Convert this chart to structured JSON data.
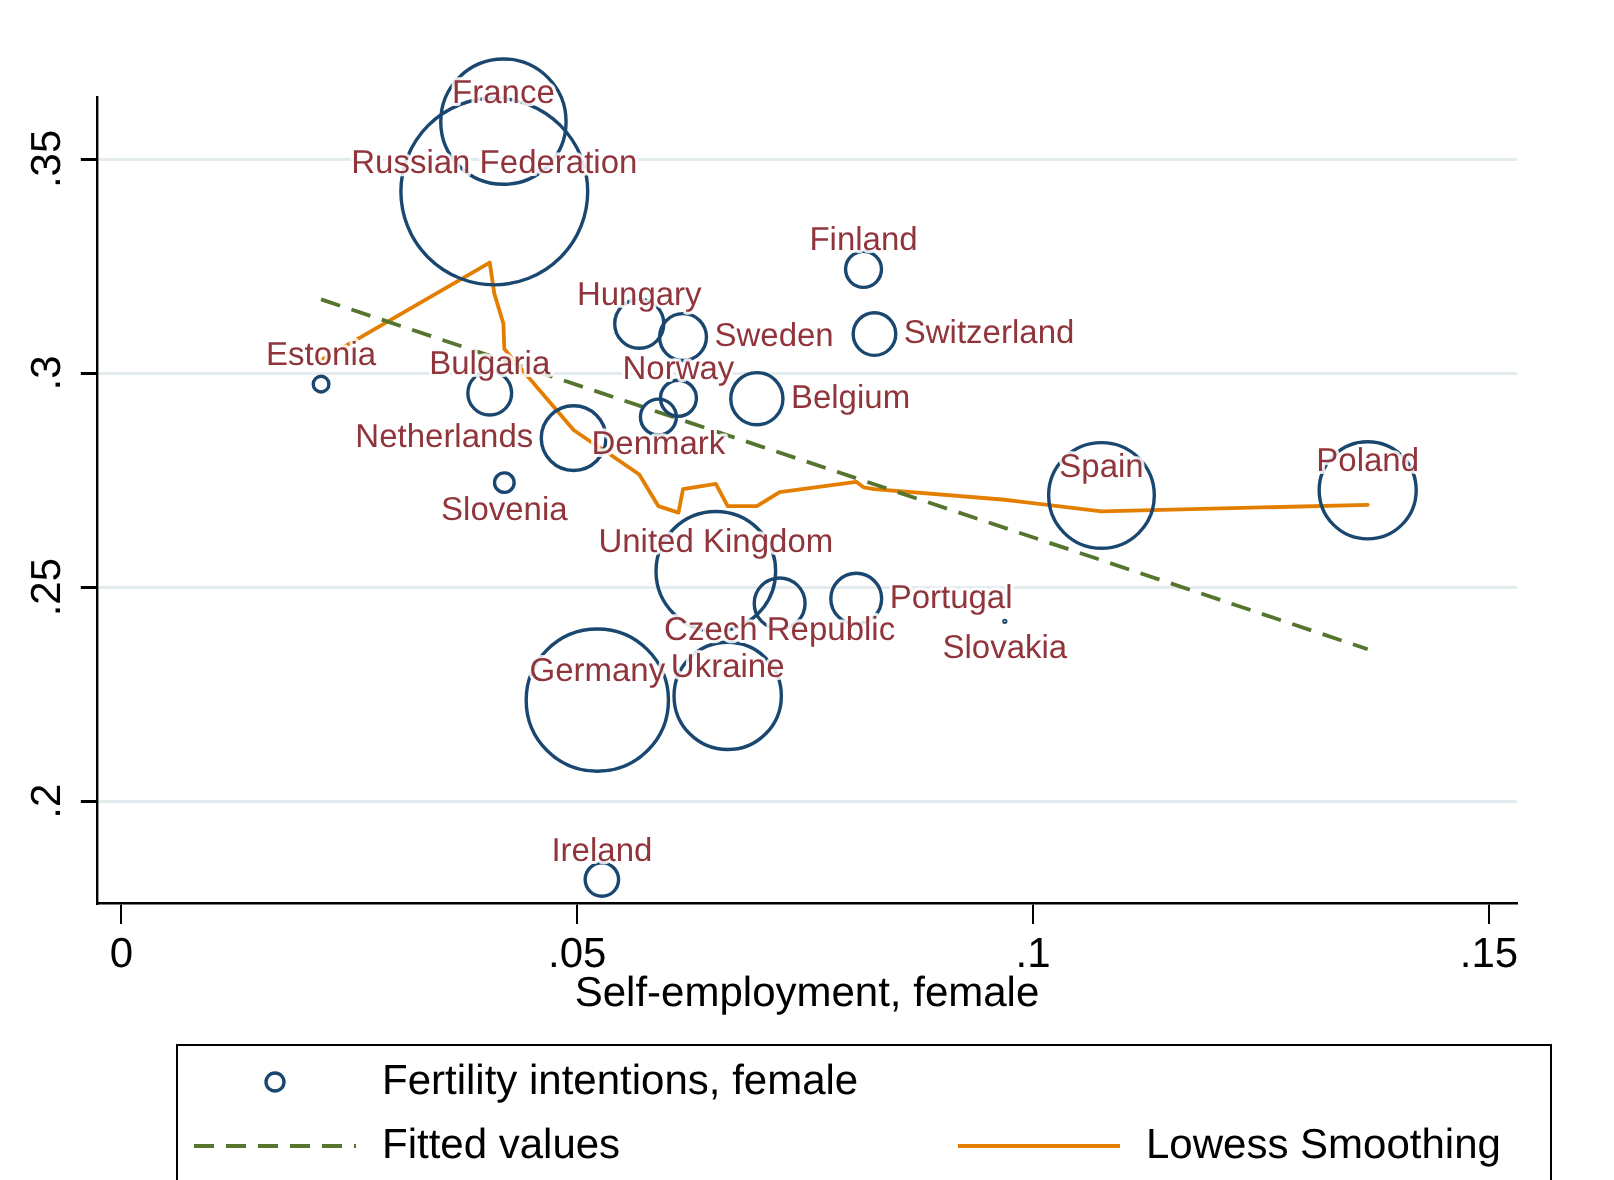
{
  "chart_data": {
    "type": "bubble",
    "xlabel": "Self-employment, female",
    "x": [
      0.0219,
      0.0404,
      0.0409,
      0.0419,
      0.042,
      0.0496,
      0.0522,
      0.0527,
      0.0568,
      0.0589,
      0.0611,
      0.0616,
      0.0652,
      0.0665,
      0.0697,
      0.0722,
      0.0806,
      0.0814,
      0.0826,
      0.0969,
      0.1075,
      0.1367
    ],
    "series": [
      {
        "name": "Fertility intentions, female",
        "color": "#1a476f",
        "values": [
          0.2974,
          0.2953,
          0.3424,
          0.3587,
          0.2744,
          0.2848,
          0.2236,
          0.1817,
          0.3115,
          0.2897,
          0.2941,
          0.3084,
          0.2537,
          0.2246,
          0.294,
          0.2462,
          0.2473,
          0.3242,
          0.3091,
          0.242,
          0.2714,
          0.2726
        ],
        "sizes": [
          0.007,
          0.055,
          1,
          0.45,
          0.011,
          0.12,
          0.58,
          0.032,
          0.069,
          0.037,
          0.037,
          0.063,
          0.41,
          0.33,
          0.078,
          0.074,
          0.074,
          0.037,
          0.052,
          0.0001,
          0.32,
          0.27
        ],
        "value_labels": [
          "Estonia",
          "Bulgaria",
          "Russian Federation",
          "France",
          "Slovenia",
          "Netherlands",
          "Germany",
          "Ireland",
          "Hungary",
          "Denmark",
          "Norway",
          "Sweden",
          "United Kingdom",
          "Ukraine",
          "Belgium",
          "Czech Republic",
          "Portugal",
          "Finland",
          "Switzerland",
          "Slovakia",
          "Spain",
          "Poland"
        ]
      },
      {
        "name": "Fitted values",
        "type": "line",
        "color": "#55752f",
        "x": [
          0.0219,
          0.1367
        ],
        "values": [
          0.3172,
          0.2355
        ],
        "line_style": "dashed",
        "marker": "none"
      },
      {
        "name": "Lowess Smoothing",
        "type": "line",
        "color": "#e37e00",
        "x": [
          0.0219,
          0.0404,
          0.0409,
          0.0419,
          0.042,
          0.0496,
          0.0522,
          0.0527,
          0.0568,
          0.0589,
          0.0611,
          0.0616,
          0.0652,
          0.0665,
          0.0697,
          0.0722,
          0.0806,
          0.0814,
          0.0826,
          0.0969,
          0.1075,
          0.1367
        ],
        "values": [
          0.303,
          0.3258,
          0.3186,
          0.3115,
          0.3056,
          0.2867,
          0.2829,
          0.2823,
          0.2763,
          0.2689,
          0.2674,
          0.2729,
          0.2741,
          0.2689,
          0.2689,
          0.2722,
          0.2746,
          0.2733,
          0.2729,
          0.2704,
          0.2677,
          0.2692
        ],
        "line_style": "solid",
        "marker": "none"
      }
    ],
    "xlim": [
      -0.0027,
      0.1531
    ],
    "xticks": [
      0,
      {
        "value": 0.05,
        "label": ".05"
      },
      {
        "value": 0.1,
        "label": ".1"
      },
      {
        "value": 0.15,
        "label": ".15"
      }
    ],
    "ylim": [
      0.176,
      0.3645
    ],
    "yticks": [
      {
        "value": 0.2,
        "label": ".2"
      },
      {
        "value": 0.25,
        "label": ".25"
      },
      {
        "value": 0.3,
        "label": ".3"
      },
      {
        "value": 0.35,
        "label": ".35"
      }
    ],
    "grid": "y",
    "legend": "bottom",
    "marker": "circle"
  }
}
